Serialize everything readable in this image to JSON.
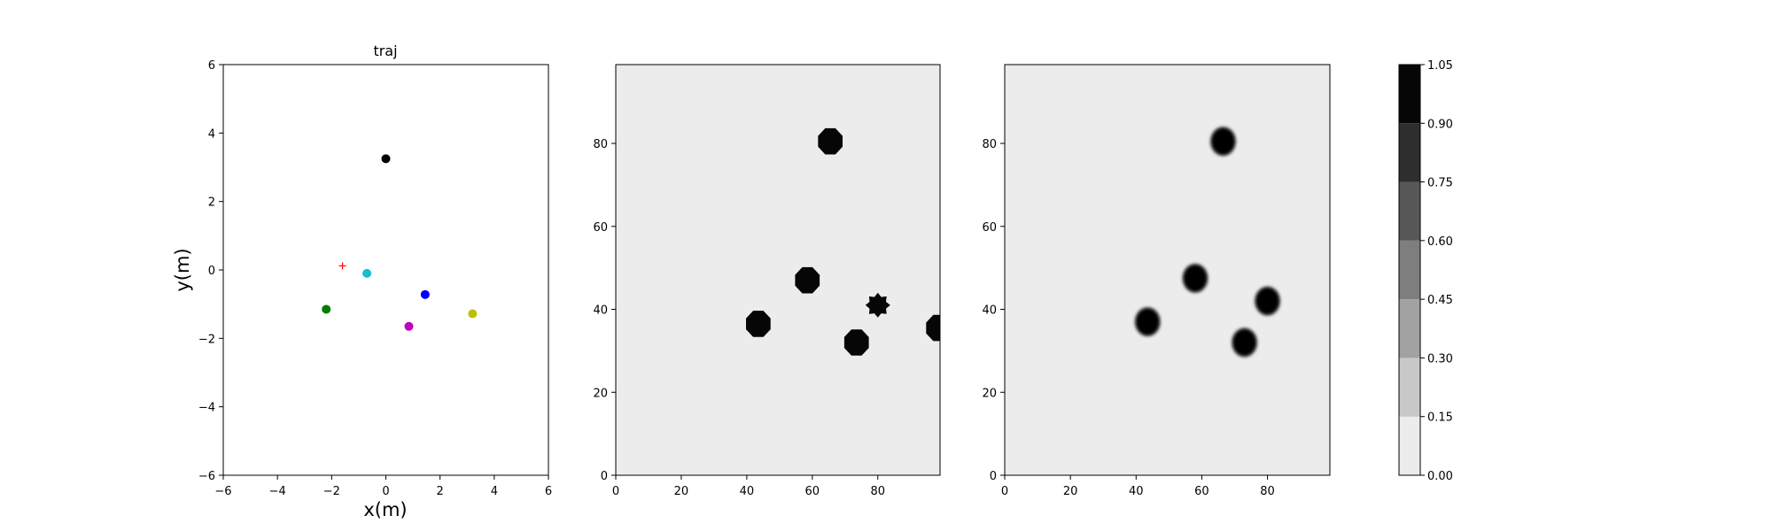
{
  "chart_data": [
    {
      "type": "scatter",
      "title": "traj",
      "xlabel": "x(m)",
      "ylabel": "y(m)",
      "xlim": [
        -6,
        6
      ],
      "ylim": [
        -6,
        6
      ],
      "xticks": [
        -6,
        -4,
        -2,
        0,
        2,
        4,
        6
      ],
      "yticks": [
        -6,
        -4,
        -2,
        0,
        2,
        4,
        6
      ],
      "grid": false,
      "points": [
        {
          "x": 0.0,
          "y": 3.25,
          "color": "#000000",
          "marker": "circle"
        },
        {
          "x": -0.7,
          "y": -0.1,
          "color": "#17becf",
          "marker": "circle"
        },
        {
          "x": 1.45,
          "y": -0.72,
          "color": "#0000ff",
          "marker": "circle"
        },
        {
          "x": -2.2,
          "y": -1.15,
          "color": "#008000",
          "marker": "circle"
        },
        {
          "x": 0.85,
          "y": -1.65,
          "color": "#bf00bf",
          "marker": "circle"
        },
        {
          "x": 3.2,
          "y": -1.28,
          "color": "#bfbf00",
          "marker": "circle"
        },
        {
          "x": -1.6,
          "y": 0.12,
          "color": "#ff0000",
          "marker": "plus"
        }
      ]
    },
    {
      "type": "heatmap",
      "title": "",
      "xlim": [
        0,
        99
      ],
      "ylim": [
        0,
        99
      ],
      "xticks": [
        0,
        20,
        40,
        60,
        80
      ],
      "yticks": [
        0,
        20,
        40,
        60,
        80
      ],
      "background_value": 0.0,
      "blobs": [
        {
          "x": 65.5,
          "y": 80.5,
          "value": 1.0,
          "shape": "octagon"
        },
        {
          "x": 58.5,
          "y": 47.0,
          "value": 1.0,
          "shape": "octagon"
        },
        {
          "x": 43.5,
          "y": 36.5,
          "value": 1.0,
          "shape": "octagon"
        },
        {
          "x": 80.0,
          "y": 41.0,
          "value": 1.0,
          "shape": "star"
        },
        {
          "x": 73.5,
          "y": 32.0,
          "value": 1.0,
          "shape": "octagon"
        },
        {
          "x": 98.5,
          "y": 35.5,
          "value": 1.0,
          "shape": "octagon"
        }
      ]
    },
    {
      "type": "heatmap",
      "title": "",
      "xlim": [
        0,
        99
      ],
      "ylim": [
        0,
        99
      ],
      "xticks": [
        0,
        20,
        40,
        60,
        80
      ],
      "yticks": [
        0,
        20,
        40,
        60,
        80
      ],
      "background_value": 0.0,
      "blobs": [
        {
          "x": 66.5,
          "y": 80.5,
          "value": 1.0,
          "shape": "round"
        },
        {
          "x": 58.0,
          "y": 47.5,
          "value": 1.0,
          "shape": "round"
        },
        {
          "x": 43.5,
          "y": 37.0,
          "value": 1.0,
          "shape": "round"
        },
        {
          "x": 80.0,
          "y": 42.0,
          "value": 1.0,
          "shape": "round"
        },
        {
          "x": 73.0,
          "y": 32.0,
          "value": 1.0,
          "shape": "round"
        }
      ]
    }
  ],
  "colorbar": {
    "levels": [
      0.0,
      0.15,
      0.3,
      0.45,
      0.6,
      0.75,
      0.9,
      1.05
    ],
    "tick_labels": [
      "0.00",
      "0.15",
      "0.30",
      "0.45",
      "0.60",
      "0.75",
      "0.90",
      "1.05"
    ],
    "colors": [
      "#ececec",
      "#c8c8c8",
      "#a2a2a2",
      "#7e7e7e",
      "#575757",
      "#2e2e2e",
      "#060606"
    ]
  }
}
